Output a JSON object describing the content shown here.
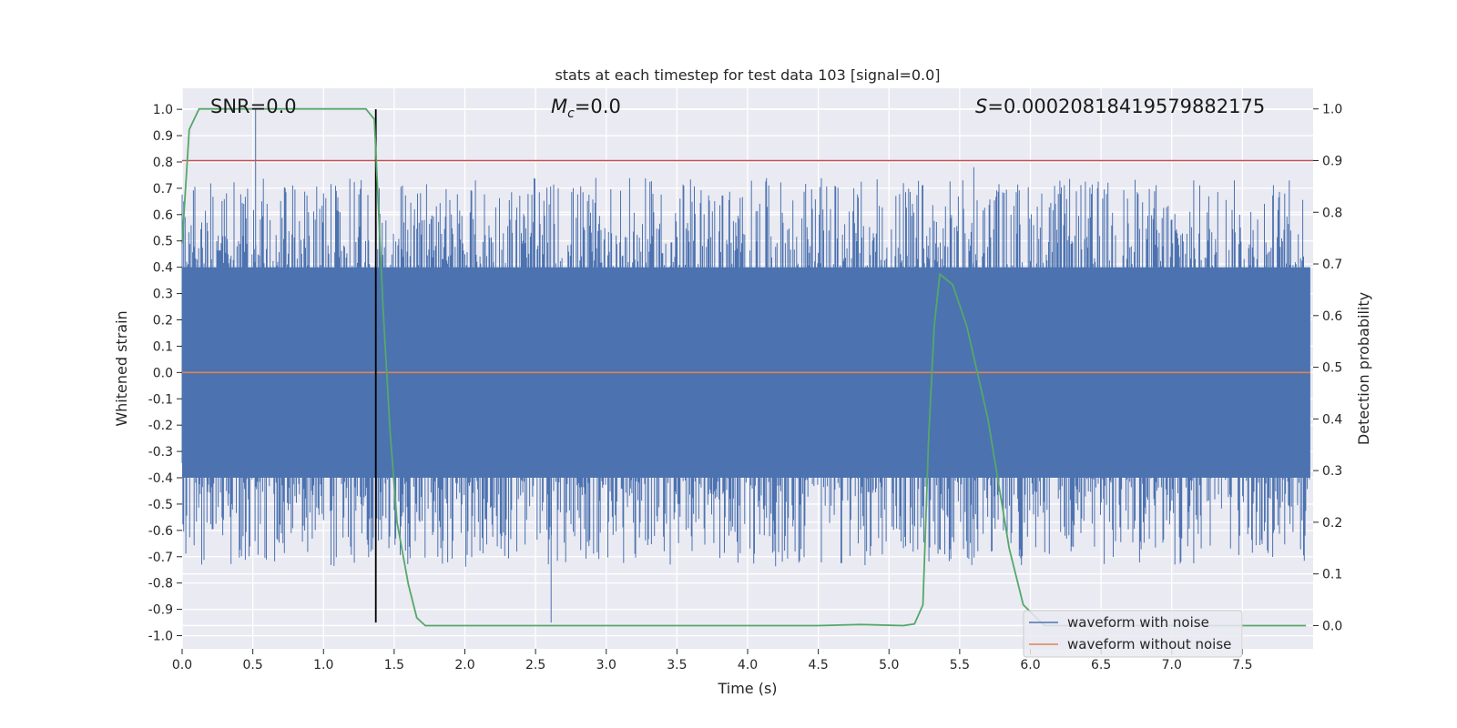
{
  "chart_data": {
    "type": "line",
    "title": "stats at each timestep for test data 103 [signal=0.0]",
    "xlabel": "Time (s)",
    "ylabel": "Whitened strain",
    "ylabel_right": "Detection probability",
    "xlim": [
      0.0,
      8.0
    ],
    "ylim": [
      -1.05,
      1.08
    ],
    "ylim_right": [
      -0.045,
      1.04
    ],
    "grid": true,
    "legend_position": "lower-right",
    "x_ticks": [
      "0.0",
      "0.5",
      "1.0",
      "1.5",
      "2.0",
      "2.5",
      "3.0",
      "3.5",
      "4.0",
      "4.5",
      "5.0",
      "5.5",
      "6.0",
      "6.5",
      "7.0",
      "7.5"
    ],
    "y_ticks": [
      "1.0",
      "0.9",
      "0.8",
      "0.7",
      "0.6",
      "0.5",
      "0.4",
      "0.3",
      "0.2",
      "0.1",
      "0.0",
      "-0.1",
      "-0.2",
      "-0.3",
      "-0.4",
      "-0.5",
      "-0.6",
      "-0.7",
      "-0.8",
      "-0.9",
      "-1.0"
    ],
    "y_ticks_right": [
      "1.0",
      "0.9",
      "0.8",
      "0.7",
      "0.6",
      "0.5",
      "0.4",
      "0.3",
      "0.2",
      "0.1",
      "0.0"
    ],
    "annotations": {
      "snr": "SNR=0.0",
      "mc_symbol": "M",
      "mc_subscript": "c",
      "mc_value": "=0.0",
      "s_symbol": "S",
      "s_value": "=0.00020818419579882175"
    },
    "threshold": 0.9,
    "marker_time": 1.37,
    "series": [
      {
        "name": "waveform with noise",
        "color": "#4c72b0",
        "envelope": {
          "core_band": [
            -0.4,
            0.4
          ],
          "typical_peak": 0.55,
          "max_values": [
            {
              "x": 0.52,
              "y": 1.0
            },
            {
              "x": 1.37,
              "y": 1.0
            },
            {
              "x": 2.61,
              "y": -0.95
            },
            {
              "x": 5.6,
              "y": 0.78
            }
          ]
        }
      },
      {
        "name": "waveform without noise",
        "color": "#dd8452",
        "values_constant": 0.0
      },
      {
        "name": "detection probability",
        "axis": "right",
        "color": "#55a868",
        "x": [
          0.0,
          0.05,
          0.12,
          0.3,
          0.6,
          0.9,
          1.2,
          1.3,
          1.36,
          1.42,
          1.47,
          1.52,
          1.6,
          1.66,
          1.72,
          1.9,
          2.5,
          3.5,
          4.5,
          4.8,
          5.1,
          5.18,
          5.24,
          5.28,
          5.32,
          5.36,
          5.45,
          5.55,
          5.7,
          5.85,
          5.95,
          6.1,
          6.4,
          7.0,
          7.5,
          7.95
        ],
        "values": [
          0.74,
          0.96,
          1.0,
          1.0,
          1.0,
          1.0,
          1.0,
          1.0,
          0.98,
          0.62,
          0.38,
          0.2,
          0.08,
          0.015,
          0.0,
          0.0,
          0.0,
          0.0,
          0.0,
          0.002,
          0.0,
          0.003,
          0.04,
          0.36,
          0.58,
          0.68,
          0.66,
          0.58,
          0.4,
          0.15,
          0.04,
          0.0,
          0.0,
          0.0,
          0.0,
          0.0
        ]
      }
    ],
    "legend": [
      "waveform with noise",
      "waveform without noise"
    ]
  }
}
